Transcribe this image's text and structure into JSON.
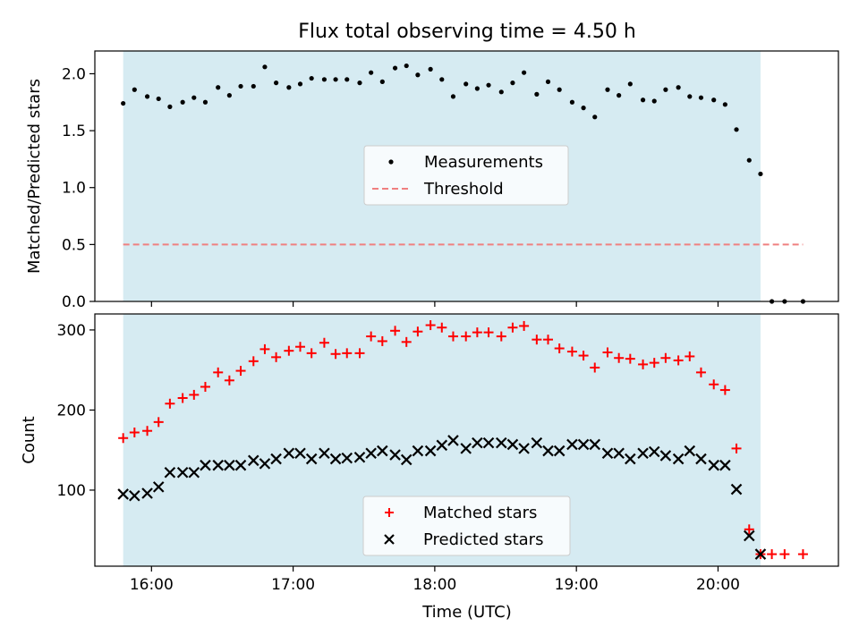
{
  "chart_data": [
    {
      "type": "scatter",
      "title": "Flux total observing time = 4.50 h",
      "ylabel": "Matched/Predicted stars",
      "xlabel": "",
      "ylim": [
        0,
        2.2
      ],
      "xlim": [
        15.6,
        20.85
      ],
      "yticks": [
        0.0,
        0.5,
        1.0,
        1.5,
        2.0
      ],
      "ytick_labels": [
        "0.0",
        "0.5",
        "1.0",
        "1.5",
        "2.0"
      ],
      "shaded_span": [
        15.8,
        20.3
      ],
      "shade_color": "#add8e6",
      "legend_position": "center",
      "series": [
        {
          "name": "Measurements",
          "color": "#000000",
          "marker": "dot",
          "x": [
            15.8,
            15.88,
            15.97,
            16.05,
            16.13,
            16.22,
            16.3,
            16.38,
            16.47,
            16.55,
            16.63,
            16.72,
            16.8,
            16.88,
            16.97,
            17.05,
            17.13,
            17.22,
            17.3,
            17.38,
            17.47,
            17.55,
            17.63,
            17.72,
            17.8,
            17.88,
            17.97,
            18.05,
            18.13,
            18.22,
            18.3,
            18.38,
            18.47,
            18.55,
            18.63,
            18.72,
            18.8,
            18.88,
            18.97,
            19.05,
            19.13,
            19.22,
            19.3,
            19.38,
            19.47,
            19.55,
            19.63,
            19.72,
            19.8,
            19.88,
            19.97,
            20.05,
            20.13,
            20.22,
            20.3,
            20.38,
            20.47,
            20.6
          ],
          "y": [
            1.74,
            1.86,
            1.8,
            1.78,
            1.71,
            1.75,
            1.79,
            1.75,
            1.88,
            1.81,
            1.89,
            1.89,
            2.06,
            1.92,
            1.88,
            1.91,
            1.96,
            1.95,
            1.95,
            1.95,
            1.92,
            2.01,
            1.93,
            2.05,
            2.07,
            1.99,
            2.04,
            1.95,
            1.8,
            1.91,
            1.87,
            1.9,
            1.84,
            1.92,
            2.01,
            1.82,
            1.93,
            1.86,
            1.75,
            1.7,
            1.62,
            1.86,
            1.81,
            1.91,
            1.77,
            1.76,
            1.86,
            1.88,
            1.8,
            1.79,
            1.77,
            1.73,
            1.51,
            1.24,
            1.12,
            0.0,
            0.0,
            0.0
          ]
        },
        {
          "name": "Threshold",
          "color": "#f08080",
          "style": "dashed",
          "x": [
            15.8,
            20.6
          ],
          "y": [
            0.5,
            0.5
          ]
        }
      ]
    },
    {
      "type": "scatter",
      "title": "",
      "ylabel": "Count",
      "xlabel": "Time (UTC)",
      "ylim": [
        5,
        320
      ],
      "xlim": [
        15.6,
        20.85
      ],
      "yticks": [
        100,
        200,
        300
      ],
      "ytick_labels": [
        "100",
        "200",
        "300"
      ],
      "xticks": [
        16,
        17,
        18,
        19,
        20
      ],
      "xtick_labels": [
        "16:00",
        "17:00",
        "18:00",
        "19:00",
        "20:00"
      ],
      "shaded_span": [
        15.8,
        20.3
      ],
      "shade_color": "#add8e6",
      "legend_position": "lower center",
      "series": [
        {
          "name": "Matched stars",
          "color": "#ff0000",
          "marker": "plus",
          "x": [
            15.8,
            15.88,
            15.97,
            16.05,
            16.13,
            16.22,
            16.3,
            16.38,
            16.47,
            16.55,
            16.63,
            16.72,
            16.8,
            16.88,
            16.97,
            17.05,
            17.13,
            17.22,
            17.3,
            17.38,
            17.47,
            17.55,
            17.63,
            17.72,
            17.8,
            17.88,
            17.97,
            18.05,
            18.13,
            18.22,
            18.3,
            18.38,
            18.47,
            18.55,
            18.63,
            18.72,
            18.8,
            18.88,
            18.97,
            19.05,
            19.13,
            19.22,
            19.3,
            19.38,
            19.47,
            19.55,
            19.63,
            19.72,
            19.8,
            19.88,
            19.97,
            20.05,
            20.13,
            20.22,
            20.3,
            20.38,
            20.47,
            20.6
          ],
          "y": [
            165,
            172,
            174,
            185,
            208,
            215,
            219,
            229,
            247,
            237,
            249,
            261,
            276,
            266,
            274,
            279,
            271,
            284,
            270,
            271,
            271,
            292,
            286,
            299,
            285,
            298,
            306,
            303,
            292,
            292,
            297,
            297,
            292,
            303,
            305,
            288,
            288,
            277,
            273,
            268,
            253,
            272,
            265,
            264,
            257,
            259,
            265,
            262,
            267,
            247,
            232,
            225,
            152,
            51,
            20,
            20,
            20,
            20
          ]
        },
        {
          "name": "Predicted stars",
          "color": "#000000",
          "marker": "x",
          "x": [
            15.8,
            15.88,
            15.97,
            16.05,
            16.13,
            16.22,
            16.3,
            16.38,
            16.47,
            16.55,
            16.63,
            16.72,
            16.8,
            16.88,
            16.97,
            17.05,
            17.13,
            17.22,
            17.3,
            17.38,
            17.47,
            17.55,
            17.63,
            17.72,
            17.8,
            17.88,
            17.97,
            18.05,
            18.13,
            18.22,
            18.3,
            18.38,
            18.47,
            18.55,
            18.63,
            18.72,
            18.8,
            18.88,
            18.97,
            19.05,
            19.13,
            19.22,
            19.3,
            19.38,
            19.47,
            19.55,
            19.63,
            19.72,
            19.8,
            19.88,
            19.97,
            20.05,
            20.13,
            20.22,
            20.3
          ],
          "y": [
            95,
            93,
            96,
            104,
            122,
            122,
            122,
            131,
            131,
            131,
            131,
            137,
            133,
            139,
            146,
            146,
            139,
            146,
            139,
            140,
            141,
            146,
            149,
            144,
            138,
            149,
            149,
            156,
            162,
            152,
            159,
            159,
            159,
            157,
            152,
            159,
            149,
            149,
            157,
            157,
            157,
            146,
            146,
            139,
            146,
            148,
            143,
            139,
            149,
            139,
            131,
            131,
            101,
            43,
            20
          ]
        }
      ]
    }
  ]
}
